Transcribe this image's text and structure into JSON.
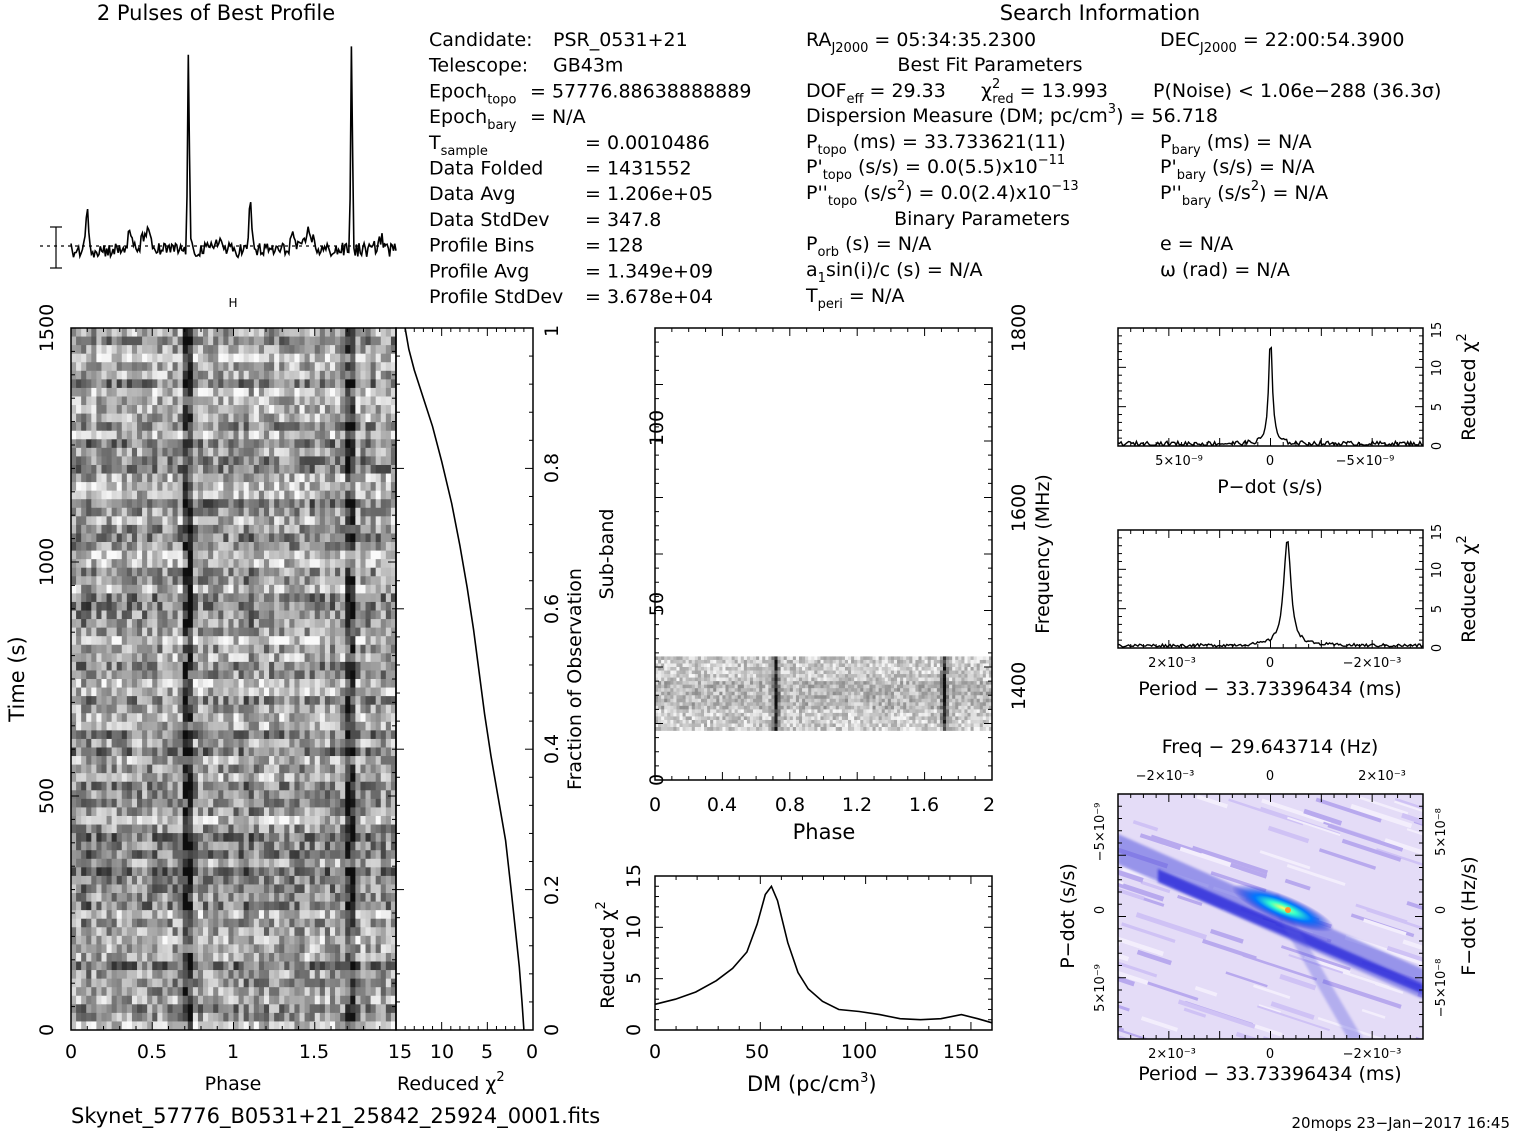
{
  "profile_title": "2 Pulses of Best Profile",
  "search_title": "Search Information",
  "candidate": [
    {
      "label": "Candidate:",
      "value": "PSR_0531+21"
    },
    {
      "label": "Telescope:",
      "value": "GB43m"
    },
    {
      "label": "Epoch",
      "sub": "topo",
      "value": "= 57776.88638888889"
    },
    {
      "label": "Epoch",
      "sub": "bary",
      "value": "= N/A"
    },
    {
      "label": "T",
      "sub": "sample",
      "value": "= 0.0010486"
    },
    {
      "label": "Data Folded",
      "value": "= 1431552"
    },
    {
      "label": "Data Avg",
      "value": "= 1.206e+05"
    },
    {
      "label": "Data StdDev",
      "value": "= 347.8"
    },
    {
      "label": "Profile Bins",
      "value": "= 128"
    },
    {
      "label": "Profile Avg",
      "value": "= 1.349e+09"
    },
    {
      "label": "Profile StdDev",
      "value": "= 3.678e+04"
    }
  ],
  "ra": {
    "pre": "RA",
    "sub": "J2000",
    "post": "= 05:34:35.2300"
  },
  "dec": {
    "pre": "DEC",
    "sub": "J2000",
    "post": "= 22:00:54.3900"
  },
  "best_fit_title": "Best Fit Parameters",
  "dof": {
    "pre": "DOF",
    "sub": "eff",
    "post": "= 29.33"
  },
  "chi2": {
    "pre": "χ",
    "sup": "2",
    "sub": "red",
    "post": "= 13.993"
  },
  "pnoise": "P(Noise) < 1.06e−288   (36.3σ)",
  "dm_line": {
    "pre": "Dispersion Measure (DM; pc/cm",
    "sup": "3",
    "post": ") = 56.718"
  },
  "ptopo": {
    "pre": "P",
    "sub": "topo",
    "post": " (ms) =   33.733621(11)"
  },
  "pbary": {
    "pre": "P",
    "sub": "bary",
    "post": " (ms) = N/A"
  },
  "pdtopo": {
    "pre": "P'",
    "sub": "topo",
    "post": " (s/s) = 0.0(5.5)x10",
    "sup": "−11"
  },
  "pdbary": {
    "pre": "P'",
    "sub": "bary",
    "post": " (s/s) = N/A"
  },
  "pddtopo": {
    "pre": "P''",
    "sub": "topo",
    "post": " (s/s",
    "sup": "2",
    "post2": ") = 0.0(2.4)x10",
    "sup2": "−13"
  },
  "pddbary": {
    "pre": "P''",
    "sub": "bary",
    "post": " (s/s",
    "sup": "2",
    "post2": ") = N/A"
  },
  "binary_title": "Binary Parameters",
  "porb": {
    "pre": "P",
    "sub": "orb",
    "post": " (s) = N/A"
  },
  "e_line": "e = N/A",
  "a1": {
    "pre": "a",
    "sub": "1",
    "post": "sin(i)/c (s) = N/A"
  },
  "omega": "ω (rad) = N/A",
  "tperi": {
    "pre": "T",
    "sub": "peri",
    "post": " = N/A"
  },
  "footer_file": "Skynet_57776_B0531+21_25842_25924_0001.fits",
  "footer_stamp": "20mops 23−Jan−2017 16:45",
  "chart_data": [
    {
      "type": "line",
      "title": "2 Pulses of Best Profile",
      "x_range": [
        0,
        2
      ],
      "peaks_phase": [
        0.72,
        1.72
      ],
      "secondary_peaks_phase": [
        0.1,
        1.1
      ]
    },
    {
      "type": "heatmap",
      "xlabel": "Phase",
      "ylabel": "Time (s)",
      "xlim": [
        0,
        2
      ],
      "ylim": [
        0,
        1500
      ],
      "x_ticks": [
        "0",
        "0.5",
        "1",
        "1.5"
      ],
      "y_ticks": [
        "0",
        "500",
        "1000",
        "1500"
      ]
    },
    {
      "type": "line",
      "xlabel": "Reduced χ²",
      "ylabel": "Fraction of Observation",
      "xlim": [
        15,
        0
      ],
      "ylim": [
        0,
        1
      ],
      "x_ticks": [
        "15",
        "10",
        "5",
        "0"
      ],
      "y_ticks": [
        "0",
        "0.2",
        "0.4",
        "0.6",
        "0.8",
        "1"
      ],
      "points": [
        {
          "x": 1.0,
          "y": 0.0
        },
        {
          "x": 1.2,
          "y": 0.04
        },
        {
          "x": 1.5,
          "y": 0.09
        },
        {
          "x": 1.9,
          "y": 0.14
        },
        {
          "x": 2.4,
          "y": 0.2
        },
        {
          "x": 3.0,
          "y": 0.27
        },
        {
          "x": 3.8,
          "y": 0.33
        },
        {
          "x": 4.6,
          "y": 0.39
        },
        {
          "x": 5.3,
          "y": 0.45
        },
        {
          "x": 5.9,
          "y": 0.51
        },
        {
          "x": 6.5,
          "y": 0.57
        },
        {
          "x": 7.2,
          "y": 0.63
        },
        {
          "x": 8.0,
          "y": 0.69
        },
        {
          "x": 8.9,
          "y": 0.75
        },
        {
          "x": 10.0,
          "y": 0.81
        },
        {
          "x": 11.0,
          "y": 0.86
        },
        {
          "x": 12.0,
          "y": 0.9
        },
        {
          "x": 13.0,
          "y": 0.94
        },
        {
          "x": 13.6,
          "y": 0.97
        },
        {
          "x": 14.0,
          "y": 1.0
        }
      ]
    },
    {
      "type": "heatmap",
      "xlabel": "Phase",
      "ylabel": "Sub-band",
      "ylabel_right": "Frequency (MHz)",
      "xlim": [
        0,
        2
      ],
      "ylim": [
        0,
        128
      ],
      "x_ticks": [
        "0",
        "0.4",
        "0.8",
        "1.2",
        "1.6",
        "2"
      ],
      "y_ticks": [
        "0",
        "50",
        "100"
      ],
      "right_ticks": [
        "1400",
        "1600",
        "1800"
      ],
      "band_subbands": [
        14,
        35
      ]
    },
    {
      "type": "line",
      "xlabel": "DM (pc/cm³)",
      "ylabel": "Reduced χ²",
      "xlim": [
        0,
        165
      ],
      "ylim": [
        0,
        15
      ],
      "x_ticks": [
        "0",
        "50",
        "100",
        "150"
      ],
      "y_ticks": [
        "0",
        "5",
        "10",
        "15"
      ],
      "points": [
        {
          "x": 0,
          "y": 2.5
        },
        {
          "x": 10,
          "y": 3.0
        },
        {
          "x": 20,
          "y": 3.7
        },
        {
          "x": 30,
          "y": 4.8
        },
        {
          "x": 38,
          "y": 6.0
        },
        {
          "x": 45,
          "y": 7.6
        },
        {
          "x": 50,
          "y": 10.3
        },
        {
          "x": 54,
          "y": 13.2
        },
        {
          "x": 57,
          "y": 14.0
        },
        {
          "x": 60,
          "y": 12.6
        },
        {
          "x": 65,
          "y": 8.5
        },
        {
          "x": 70,
          "y": 5.6
        },
        {
          "x": 75,
          "y": 4.0
        },
        {
          "x": 82,
          "y": 2.8
        },
        {
          "x": 90,
          "y": 2.0
        },
        {
          "x": 100,
          "y": 1.8
        },
        {
          "x": 110,
          "y": 1.5
        },
        {
          "x": 120,
          "y": 1.1
        },
        {
          "x": 130,
          "y": 1.0
        },
        {
          "x": 140,
          "y": 1.1
        },
        {
          "x": 150,
          "y": 1.5
        },
        {
          "x": 158,
          "y": 1.1
        },
        {
          "x": 165,
          "y": 0.7
        }
      ]
    },
    {
      "type": "line",
      "xlabel": "P−dot (s/s)",
      "ylabel": "Reduced χ²",
      "x_ticks": [
        "5×10⁻⁹",
        "0",
        "−5×10⁻⁹"
      ],
      "y_ticks": [
        "0",
        "5",
        "10",
        "15"
      ],
      "ylim": [
        0,
        15
      ],
      "peak": 14.0
    },
    {
      "type": "line",
      "xlabel": "Period − 33.73396434 (ms)",
      "ylabel": "Reduced χ²",
      "x_ticks": [
        "2×10⁻³",
        "0",
        "−2×10⁻³"
      ],
      "y_ticks": [
        "0",
        "5",
        "10",
        "15"
      ],
      "ylim": [
        0,
        15
      ],
      "peak": 14.0
    },
    {
      "type": "heatmap",
      "title": "Freq − 29.643714 (Hz)",
      "xlabel": "Period − 33.73396434 (ms)",
      "ylabel": "P−dot (s/s)",
      "ylabel_right": "F−dot (Hz/s)",
      "top_ticks": [
        "−2×10⁻³",
        "0",
        "2×10⁻³"
      ],
      "bottom_ticks": [
        "2×10⁻³",
        "0",
        "−2×10⁻³"
      ],
      "left_ticks": [
        "−5×10⁻⁹",
        "0",
        "5×10⁻⁹"
      ],
      "right_ticks": [
        "5×10⁻⁸",
        "0",
        "−5×10⁻⁸"
      ]
    }
  ]
}
